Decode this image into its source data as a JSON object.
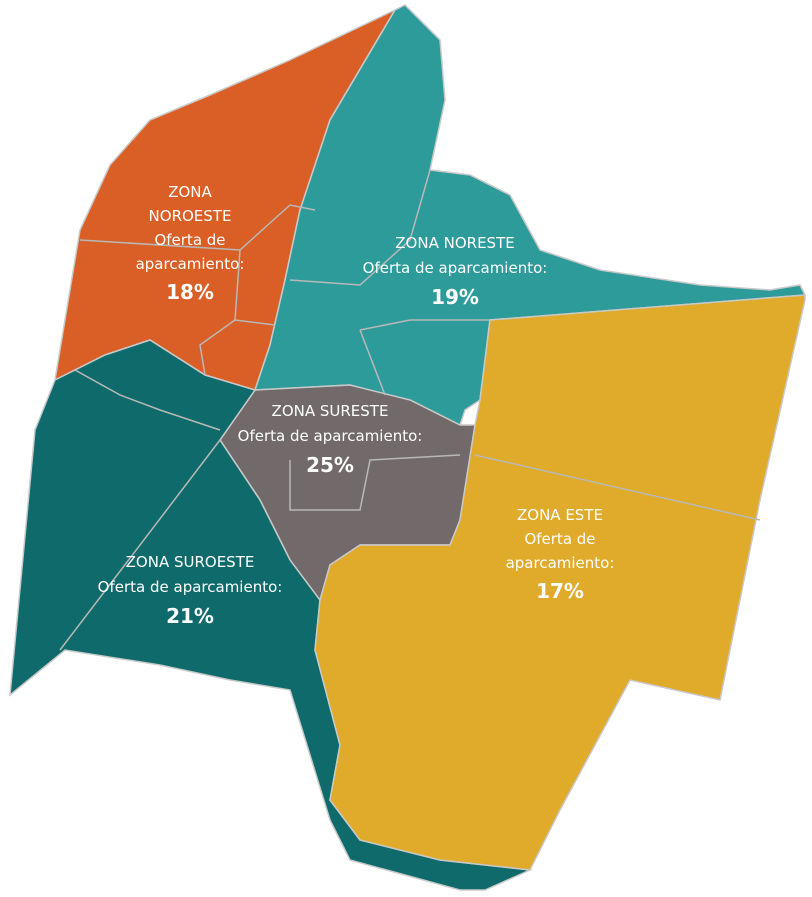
{
  "zones": [
    {
      "lines": [
        "ZONA",
        "NOROESTE",
        "Oferta de",
        "aparcamiento:"
      ],
      "percent": "18%"
    },
    {
      "lines": [
        "ZONA NORESTE",
        "Oferta de aparcamiento:"
      ],
      "percent": "19%"
    },
    {
      "lines": [
        "ZONA SURESTE",
        "Oferta de aparcamiento:"
      ],
      "percent": "25%"
    },
    {
      "lines": [
        "ZONA SUROESTE",
        "Oferta de aparcamiento:"
      ],
      "percent": "21%"
    },
    {
      "lines": [
        "ZONA ESTE",
        "Oferta de",
        "aparcamiento:"
      ],
      "percent": "17%"
    }
  ]
}
